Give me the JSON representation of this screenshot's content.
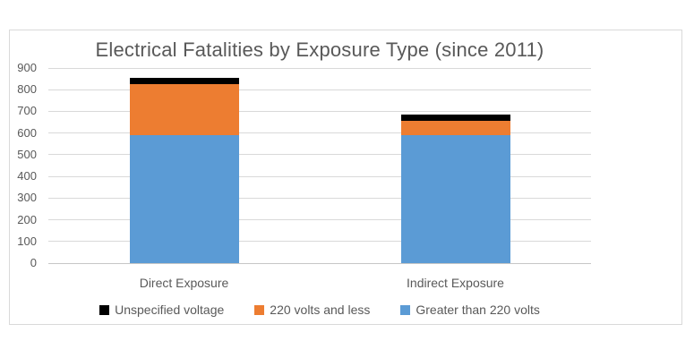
{
  "title": "Electrical Fatalities by Exposure Type (since 2011)",
  "chart_data": {
    "type": "bar",
    "stacked": true,
    "title": "Electrical Fatalities by Exposure Type (since 2011)",
    "categories": [
      "Direct Exposure",
      "Indirect Exposure"
    ],
    "series": [
      {
        "name": "Greater than 220 volts",
        "color": "#5B9BD5",
        "values": [
          590,
          590
        ]
      },
      {
        "name": "220 volts and less",
        "color": "#ED7D31",
        "values": [
          235,
          65
        ]
      },
      {
        "name": "Unspecified voltage",
        "color": "#000000",
        "values": [
          30,
          30
        ]
      }
    ],
    "stack_totals": [
      855,
      685
    ],
    "ylim": [
      0,
      900
    ],
    "ytick_interval": 100,
    "ytick_labels": [
      "0",
      "100",
      "200",
      "300",
      "400",
      "500",
      "600",
      "700",
      "800",
      "900"
    ],
    "grid": true,
    "legend_position": "bottom",
    "legend_order": [
      "Unspecified voltage",
      "220 volts and less",
      "Greater than 220 volts"
    ]
  },
  "colors": {
    "text": "#595959",
    "gridline": "#D9D9D9",
    "axis_line": "#C6C6C6",
    "chart_border": "#D9D9D9",
    "background": "#FFFFFF"
  }
}
